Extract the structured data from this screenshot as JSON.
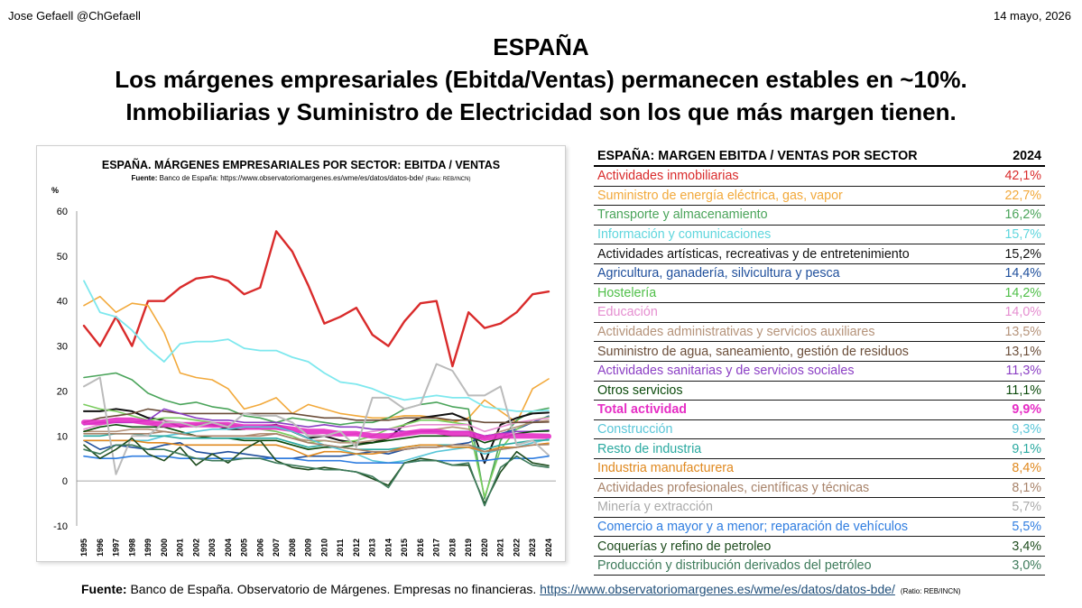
{
  "header": {
    "author": "Jose Gefaell @ChGefaell",
    "date": "14 mayo, 2026"
  },
  "title_lines": [
    "ESPAÑA",
    "Los márgenes empresariales (Ebitda/Ventas) permanecen estables en ~10%.",
    "Inmobiliarias y Suministro de Electricidad son los que más margen tienen."
  ],
  "chart_data": {
    "type": "line",
    "title": "ESPAÑA. MÁRGENES EMPRESARIALES POR SECTOR: EBITDA / VENTAS",
    "source_label": "Fuente:",
    "source_text": "Banco de España: https://www.observatoriomargenes.es/wme/es/datos/datos-bde/",
    "ratio_note": "(Ratio: REB/INCN)",
    "ylabel": "%",
    "ylim": [
      -10,
      60
    ],
    "yticks": [
      -10,
      0,
      10,
      20,
      30,
      40,
      50,
      60
    ],
    "x": [
      "1995",
      "1996",
      "1997",
      "1998",
      "1999",
      "2000",
      "2001",
      "2002",
      "2003",
      "2004",
      "2005",
      "2006",
      "2007",
      "2008",
      "2009",
      "2010",
      "2011",
      "2012",
      "2013",
      "2014",
      "2015",
      "2016",
      "2017",
      "2018",
      "2019",
      "2020",
      "2021",
      "2022",
      "2023",
      "2024"
    ],
    "series": [
      {
        "name": "Actividades inmobiliarias",
        "color": "#d92b2b",
        "width": 2.4,
        "values": [
          34.5,
          30,
          36.5,
          30,
          40,
          40,
          43,
          45,
          45.5,
          44.5,
          41.5,
          43,
          55.5,
          51,
          43.5,
          35,
          36.5,
          38.5,
          32.5,
          30,
          35.5,
          39.5,
          40,
          25.5,
          37.5,
          34,
          35,
          37.5,
          41.5,
          42.1
        ]
      },
      {
        "name": "Suministro de energía eléctrica,  gas, vapor",
        "color": "#f2a93b",
        "width": 1.6,
        "values": [
          39,
          41,
          37.5,
          39.5,
          39,
          33,
          24,
          23,
          22.5,
          20.5,
          16,
          17,
          18.5,
          15,
          17,
          16,
          15,
          14.5,
          14,
          14,
          14.5,
          14.5,
          14,
          13,
          14,
          18,
          15.5,
          13,
          20.5,
          22.7
        ]
      },
      {
        "name": "Transporte y almacenamiento",
        "color": "#4aa45a",
        "width": 1.6,
        "values": [
          23,
          23.5,
          24,
          22.5,
          19.5,
          18,
          17,
          17.5,
          16.5,
          16,
          14.5,
          14,
          13,
          14,
          13.5,
          13,
          12.5,
          13,
          13,
          14,
          16,
          17,
          17.5,
          16.5,
          16,
          -4,
          9,
          13.5,
          15.5,
          16.2
        ]
      },
      {
        "name": "Información y comunicaciones",
        "color": "#7ee8ee",
        "width": 1.8,
        "values": [
          44.5,
          37.5,
          36.5,
          33.5,
          29.5,
          26.5,
          30.5,
          31,
          31,
          31.5,
          29.5,
          29,
          29,
          27.5,
          26.5,
          24,
          22,
          21.5,
          20.5,
          19,
          18,
          18.5,
          19,
          18.5,
          18.5,
          16.5,
          16,
          15.5,
          15.5,
          15.7
        ]
      },
      {
        "name": "Actividades artísticas, recreativas y de entretenimiento",
        "color": "#111111",
        "width": 2,
        "values": [
          15.5,
          15.5,
          16,
          15.5,
          14,
          13.5,
          12,
          12.5,
          12.5,
          11.5,
          11.5,
          12,
          12.5,
          11,
          9.5,
          10,
          9,
          8.5,
          8.5,
          9.5,
          12.5,
          14,
          14.5,
          15,
          13.5,
          4,
          12.5,
          14,
          15,
          15.2
        ]
      },
      {
        "name": "Agricultura, ganadería, silvicultura y pesca",
        "color": "#1f4f9c",
        "width": 1.6,
        "values": [
          9,
          7,
          8,
          7.5,
          7,
          8,
          8.5,
          6.5,
          6,
          6.5,
          6,
          5.5,
          5,
          5,
          5.5,
          5.5,
          5.5,
          6,
          6.5,
          6,
          7,
          7.5,
          7.5,
          8,
          8.5,
          10,
          10.5,
          11.5,
          13,
          14.4
        ]
      },
      {
        "name": "Hostelería",
        "color": "#7acc5e",
        "width": 1.6,
        "values": [
          17,
          16,
          15.5,
          14.5,
          13.5,
          14,
          14,
          13.5,
          13,
          12.5,
          12,
          11.5,
          11,
          10,
          8.5,
          9,
          8.5,
          9,
          10,
          11.5,
          12.5,
          13.5,
          13.5,
          13,
          12.5,
          -3.5,
          7,
          11.5,
          13.5,
          14.2
        ]
      },
      {
        "name": "Educación",
        "color": "#e58ed0",
        "width": 1.6,
        "values": [
          11.5,
          12.5,
          13,
          13,
          12.5,
          13.5,
          13,
          12.5,
          12,
          12,
          11.5,
          11.5,
          11.5,
          11,
          10.5,
          10,
          10,
          10.5,
          11,
          11.5,
          12,
          12.5,
          12.5,
          12.5,
          12.5,
          11,
          12,
          13,
          13.5,
          14
        ]
      },
      {
        "name": "Actividades administrativas y servicios auxiliares",
        "color": "#b5937a",
        "width": 1.6,
        "values": [
          11,
          11,
          11,
          11.5,
          11.5,
          11,
          10.5,
          10,
          10,
          10,
          10,
          10.5,
          10.5,
          9.5,
          9,
          9,
          8.5,
          8.5,
          9,
          9.5,
          10.5,
          11,
          11.5,
          12,
          11.5,
          9.5,
          11,
          12,
          13,
          13.5
        ]
      },
      {
        "name": "Suministro de agua, saneamiento, gestión de residuos",
        "color": "#6b4e3a",
        "width": 1.6,
        "values": [
          13,
          14,
          14.5,
          15,
          16,
          15.5,
          15,
          15,
          15,
          15,
          15,
          15,
          15,
          15,
          14.5,
          14,
          14,
          13.5,
          13.5,
          13.5,
          14,
          14,
          14,
          13.5,
          13.5,
          13,
          13,
          13,
          13,
          13.1
        ]
      },
      {
        "name": "Actividades sanitarias y de servicios sociales",
        "color": "#8b3fc4",
        "width": 1.6,
        "values": [
          12.5,
          13,
          13,
          13,
          13.5,
          16,
          15,
          14,
          13.5,
          13.5,
          13,
          13,
          13,
          12.5,
          12,
          12.5,
          12,
          12,
          11.5,
          11.5,
          11,
          11,
          11,
          11,
          11,
          10,
          10.5,
          11,
          11,
          11.3
        ]
      },
      {
        "name": "Otros servicios",
        "color": "#0b4a0b",
        "width": 1.6,
        "values": [
          11,
          12,
          12.5,
          12,
          12,
          12,
          11,
          10,
          9.5,
          9.5,
          9,
          9,
          9,
          8,
          7,
          7.5,
          7.5,
          8,
          8.5,
          9,
          9.5,
          10,
          10,
          10,
          10,
          8.5,
          9.5,
          10.5,
          11,
          11.1
        ]
      },
      {
        "name": "Total actividad",
        "color": "#e62ec5",
        "width": 6,
        "values": [
          13,
          13,
          13.5,
          13.5,
          13,
          12.5,
          12.5,
          12.5,
          12.5,
          12.5,
          12,
          12,
          12,
          11.5,
          11,
          11,
          10.5,
          10.5,
          10,
          10,
          10.5,
          11,
          11,
          10.5,
          10.5,
          9.5,
          10,
          10,
          10,
          9.9
        ]
      },
      {
        "name": "Construcción",
        "color": "#59c6d8",
        "width": 1.6,
        "values": [
          9,
          9,
          9,
          9,
          9,
          10,
          10.5,
          11,
          11.5,
          11.5,
          12,
          12,
          12,
          11,
          9.5,
          8,
          7,
          6,
          4.5,
          4,
          4.5,
          5.5,
          6.5,
          7,
          7.5,
          6,
          7,
          7.5,
          8.5,
          9.3
        ]
      },
      {
        "name": "Resto de industria",
        "color": "#2aa9a0",
        "width": 1.6,
        "values": [
          10,
          10,
          10.5,
          10.5,
          10,
          10,
          9.5,
          9.5,
          9.5,
          9.5,
          9.5,
          9.5,
          9.5,
          8.5,
          7.5,
          8,
          7.5,
          7,
          7,
          7,
          7.5,
          8,
          8,
          8,
          8,
          7,
          8,
          8.5,
          9,
          9.1
        ]
      },
      {
        "name": "Industria manufacturera",
        "color": "#e0891f",
        "width": 1.6,
        "values": [
          9,
          9,
          9,
          9,
          8.5,
          8.5,
          8,
          8,
          8,
          8,
          8,
          8,
          8,
          7,
          5.5,
          6.5,
          6.5,
          6,
          6,
          6.5,
          7.5,
          8,
          8,
          7.5,
          7.5,
          6.5,
          7.5,
          7.5,
          8,
          8.4
        ]
      },
      {
        "name": "Actividades profesionales, científicas y técnicas",
        "color": "#a8836a",
        "width": 1.6,
        "values": [
          10.5,
          10.5,
          10.5,
          10.5,
          10.5,
          11,
          10.5,
          10,
          10,
          10,
          10,
          10,
          10.5,
          9.5,
          8.5,
          8,
          7.5,
          7,
          6.5,
          6.5,
          7,
          7.5,
          7.5,
          8,
          8,
          6.5,
          7,
          7.5,
          8,
          8.1
        ]
      },
      {
        "name": "Minería y extracción",
        "color": "#bbbbbb",
        "width": 2,
        "values": [
          21,
          23,
          1.5,
          10,
          10,
          13,
          13,
          12,
          13,
          12,
          15,
          14.5,
          14.5,
          13,
          10,
          10,
          11,
          7.5,
          18.5,
          18.5,
          16,
          17,
          26,
          24.5,
          19,
          19,
          21,
          8,
          9,
          5.7
        ]
      },
      {
        "name": "Comercio a mayor y a menor; reparación de vehículos",
        "color": "#2f7de0",
        "width": 1.6,
        "values": [
          5.5,
          5,
          5,
          5.5,
          5.5,
          5.5,
          5,
          5,
          5,
          5,
          5,
          5,
          5,
          5,
          4.5,
          4.5,
          4.5,
          4,
          4,
          4,
          4,
          4.5,
          4.5,
          4.5,
          4.5,
          4.5,
          5,
          5,
          5,
          5.5
        ]
      },
      {
        "name": "Coquerías y refino de petroleo",
        "color": "#1e4c1e",
        "width": 1.6,
        "values": [
          8,
          5,
          7,
          9.5,
          6,
          4.5,
          7.5,
          3.5,
          6,
          4,
          7,
          9,
          4.5,
          3,
          2.5,
          3,
          2.5,
          2,
          0.5,
          -1,
          4,
          5,
          4.5,
          3.5,
          3.5,
          -5,
          2,
          6.5,
          4,
          3.4
        ]
      },
      {
        "name": "Producción y distribución derivados del petróleo",
        "color": "#3d7a5a",
        "width": 1.6,
        "values": [
          7,
          6,
          8,
          8,
          7,
          7,
          6,
          5,
          4.5,
          4.5,
          5,
          5,
          4,
          3.5,
          3,
          2.5,
          2.5,
          2,
          1,
          -1.5,
          4,
          4.5,
          4.5,
          3.5,
          4,
          -5.5,
          3,
          5.5,
          3.5,
          3.0
        ]
      }
    ]
  },
  "table": {
    "header": "ESPAÑA: MARGEN EBITDA / VENTAS POR SECTOR",
    "year": "2024",
    "rows": [
      {
        "label": "Actividades inmobiliarias",
        "value": "42,1%",
        "color": "#d92b2b",
        "bold": false
      },
      {
        "label": "Suministro de energía eléctrica,  gas, vapor",
        "value": "22,7%",
        "color": "#f2a93b",
        "bold": false
      },
      {
        "label": "Transporte y almacenamiento",
        "value": "16,2%",
        "color": "#4aa45a",
        "bold": false
      },
      {
        "label": "Información y comunicaciones",
        "value": "15,7%",
        "color": "#5fd6dd",
        "bold": false
      },
      {
        "label": "Actividades artísticas, recreativas y de entretenimiento",
        "value": "15,2%",
        "color": "#111111",
        "bold": false
      },
      {
        "label": "Agricultura, ganadería, silvicultura y pesca",
        "value": "14,4%",
        "color": "#1f4f9c",
        "bold": false
      },
      {
        "label": "Hostelería",
        "value": "14,2%",
        "color": "#4fbf48",
        "bold": false
      },
      {
        "label": "Educación",
        "value": "14,0%",
        "color": "#e58ed0",
        "bold": false
      },
      {
        "label": "Actividades administrativas y servicios auxiliares",
        "value": "13,5%",
        "color": "#b5937a",
        "bold": false
      },
      {
        "label": "Suministro de agua, saneamiento, gestión de residuos",
        "value": "13,1%",
        "color": "#6b4e3a",
        "bold": false
      },
      {
        "label": "Actividades sanitarias y de servicios sociales",
        "value": "11,3%",
        "color": "#8b3fc4",
        "bold": false
      },
      {
        "label": "Otros servicios",
        "value": "11,1%",
        "color": "#0b4a0b",
        "bold": false
      },
      {
        "label": "Total actividad",
        "value": "9,9%",
        "color": "#e62ec5",
        "bold": true
      },
      {
        "label": "Construcción",
        "value": "9,3%",
        "color": "#59c6d8",
        "bold": false
      },
      {
        "label": "Resto de industria",
        "value": "9,1%",
        "color": "#2aa9a0",
        "bold": false
      },
      {
        "label": "Industria manufacturera",
        "value": "8,4%",
        "color": "#e0891f",
        "bold": false
      },
      {
        "label": "Actividades profesionales, científicas y técnicas",
        "value": "8,1%",
        "color": "#a8836a",
        "bold": false
      },
      {
        "label": "Minería y extracción",
        "value": "5,7%",
        "color": "#aaaaaa",
        "bold": false
      },
      {
        "label": "Comercio a mayor y a menor; reparación de vehículos",
        "value": "5,5%",
        "color": "#2f7de0",
        "bold": false
      },
      {
        "label": "Coquerías y refino de petroleo",
        "value": "3,4%",
        "color": "#1e4c1e",
        "bold": false
      },
      {
        "label": "Producción y distribución derivados del petróleo",
        "value": "3,0%",
        "color": "#3d7a5a",
        "bold": false
      }
    ]
  },
  "footer": {
    "label": "Fuente:",
    "text": " Banco de España. Observatorio de Márgenes. Empresas no financieras. ",
    "link": "https://www.observatoriomargenes.es/wme/es/datos/datos-bde/",
    "ratio": "(Ratio: REB/INCN)"
  }
}
